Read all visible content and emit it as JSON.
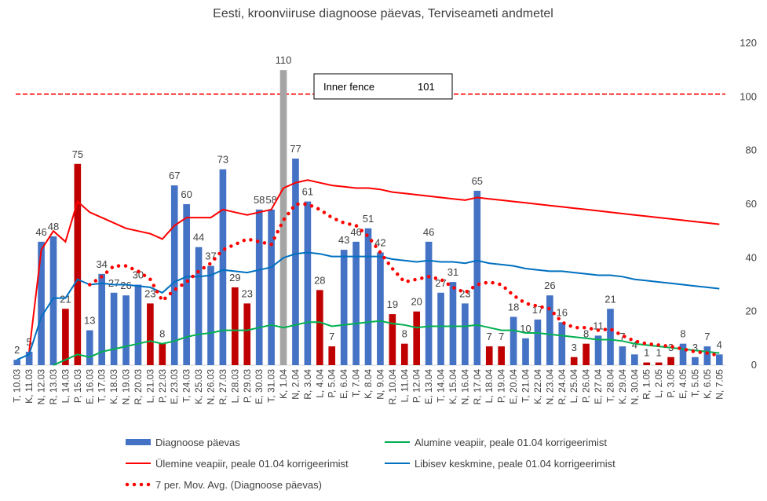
{
  "chart_data": {
    "type": "bar",
    "title": "Eesti, kroonviiruse diagnoose päevas, Terviseameti andmetel",
    "categories": [
      "T, 10.03",
      "K, 11.03",
      "N, 12.03",
      "R, 13.03",
      "L, 14.03",
      "P, 15.03",
      "E, 16.03",
      "T, 17.03",
      "K, 18.03",
      "N, 19.03",
      "R, 20.03",
      "L, 21.03",
      "P, 22.03",
      "E, 23.03",
      "T, 24.03",
      "K, 25.03",
      "N, 26.03",
      "R, 27.03",
      "L, 28.03",
      "P, 29.03",
      "E, 30.03",
      "T, 31.03",
      "K, 1.04",
      "N, 2.04",
      "R, 3.04",
      "L, 4.04",
      "P, 5.04",
      "E, 6.04",
      "T, 7.04",
      "K, 8.04",
      "N, 9.04",
      "R, 10.04",
      "L, 11.04",
      "P, 12.04",
      "E, 13.04",
      "T, 14.04",
      "K, 15.04",
      "N, 16.04",
      "R, 17.04",
      "L, 18.04",
      "P, 19.04",
      "E, 20.04",
      "T, 21.04",
      "K, 22.04",
      "N, 23.04",
      "R, 24.04",
      "L, 25.04",
      "P, 26.04",
      "E, 27.04",
      "T, 28.04",
      "K, 29.04",
      "N, 30.04",
      "R, 1.05",
      "L, 2.05",
      "P, 3.05",
      "E, 4.05",
      "T, 5.05",
      "K, 6.05",
      "N, 7.05"
    ],
    "series": [
      {
        "name": "Diagnoose päevas",
        "type": "bar",
        "color": "#4472c4",
        "colors": [
          "#4472c4",
          "#4472c4",
          "#4472c4",
          "#4472c4",
          "#c00000",
          "#c00000",
          "#4472c4",
          "#4472c4",
          "#4472c4",
          "#4472c4",
          "#4472c4",
          "#c00000",
          "#c00000",
          "#4472c4",
          "#4472c4",
          "#4472c4",
          "#4472c4",
          "#4472c4",
          "#c00000",
          "#c00000",
          "#4472c4",
          "#4472c4",
          "#a5a5a5",
          "#4472c4",
          "#4472c4",
          "#c00000",
          "#c00000",
          "#4472c4",
          "#4472c4",
          "#4472c4",
          "#4472c4",
          "#c00000",
          "#c00000",
          "#c00000",
          "#4472c4",
          "#4472c4",
          "#4472c4",
          "#4472c4",
          "#4472c4",
          "#c00000",
          "#c00000",
          "#4472c4",
          "#4472c4",
          "#4472c4",
          "#4472c4",
          "#4472c4",
          "#c00000",
          "#c00000",
          "#4472c4",
          "#4472c4",
          "#4472c4",
          "#4472c4",
          "#c00000",
          "#c00000",
          "#c00000",
          "#4472c4",
          "#4472c4",
          "#4472c4",
          "#4472c4"
        ],
        "values": [
          2,
          5,
          46,
          48,
          21,
          75,
          13,
          34,
          27,
          26,
          30,
          23,
          8,
          67,
          60,
          44,
          37,
          73,
          29,
          23,
          58,
          58,
          110,
          77,
          61,
          28,
          7,
          43,
          46,
          51,
          42,
          19,
          8,
          20,
          46,
          27,
          31,
          23,
          65,
          7,
          7,
          18,
          10,
          17,
          26,
          16,
          3,
          8,
          11,
          21,
          7,
          4,
          1,
          1,
          3,
          8,
          3,
          7,
          4
        ]
      },
      {
        "name": "Alumine veapiir, peale 01.04 korrigeerimist",
        "type": "line",
        "color": "#00b050",
        "values": [
          null,
          null,
          null,
          0,
          2,
          4,
          3,
          5,
          6,
          7,
          8,
          9,
          8,
          9,
          10.5,
          11.5,
          12,
          13,
          13,
          13,
          14,
          15,
          14,
          15,
          16,
          16,
          14.5,
          15,
          15.5,
          16,
          16.5,
          15.5,
          15,
          14,
          14.5,
          14.5,
          14.5,
          14.5,
          15,
          14,
          13,
          13,
          12,
          12,
          11.5,
          11,
          10.5,
          10,
          9.5,
          9.5,
          9,
          8,
          7.5,
          7,
          6.5,
          6,
          5.5,
          5,
          4.5
        ]
      },
      {
        "name": "Ülemine veapiir, peale 01.04 korrigeerimist",
        "type": "line",
        "color": "#ff0000",
        "values": [
          null,
          5,
          43,
          50,
          46,
          61,
          57,
          55,
          53,
          51,
          50,
          49,
          47,
          52,
          55,
          55,
          55,
          58,
          57,
          56,
          57,
          58,
          66,
          68,
          69,
          68,
          67,
          66.5,
          66,
          66,
          65.5,
          64.5,
          64,
          63.5,
          63,
          62.5,
          62,
          61.5,
          62.5,
          62,
          61.5,
          61,
          60.5,
          60,
          59.5,
          59,
          58.5,
          58,
          57.5,
          57,
          56.5,
          56,
          55.5,
          55,
          54.5,
          54,
          53.5,
          53,
          52.5
        ]
      },
      {
        "name": "Libisev keskmine, peale 01.04 korrigeerimist",
        "type": "line",
        "color": "#0070c0",
        "values": [
          2,
          4,
          18,
          25,
          25,
          32,
          30,
          30.5,
          30,
          30,
          29.5,
          29,
          27,
          31,
          33,
          33,
          33.5,
          35.5,
          35,
          34.5,
          35.5,
          36.5,
          40,
          41.5,
          42,
          41.5,
          40.5,
          40.5,
          40.5,
          40.5,
          40.5,
          39.5,
          39,
          38.5,
          39,
          38.5,
          38.5,
          38,
          39,
          38,
          37.5,
          37,
          36,
          35.5,
          35,
          35,
          34.5,
          34,
          33.5,
          33.5,
          33,
          32,
          31.5,
          31,
          30.5,
          30,
          29.5,
          29,
          28.5
        ]
      },
      {
        "name": "7 per. Mov. Avg. (Diagnoose päevas)",
        "type": "line",
        "dash": "dot",
        "color": "#ff0000",
        "values": [
          null,
          null,
          null,
          null,
          null,
          null,
          30,
          33,
          37,
          37,
          35,
          32,
          24,
          28,
          31,
          35,
          38,
          43,
          45,
          47,
          46,
          45,
          54,
          60,
          60,
          58,
          55,
          53,
          52,
          48,
          42,
          36,
          31,
          32,
          33,
          32,
          29,
          27,
          30,
          31,
          30,
          26,
          23,
          22,
          21,
          16,
          14,
          14,
          13,
          13.5,
          11,
          9,
          8,
          7.5,
          7,
          6,
          5,
          4.5,
          3.5
        ]
      }
    ],
    "inner_fence": {
      "label": "Inner fence",
      "value": 101,
      "color": "#ff0000"
    },
    "ylim": [
      0,
      120
    ],
    "yticks": [
      0,
      20,
      40,
      60,
      80,
      100,
      120
    ],
    "axis_side": "right",
    "grid": false
  }
}
